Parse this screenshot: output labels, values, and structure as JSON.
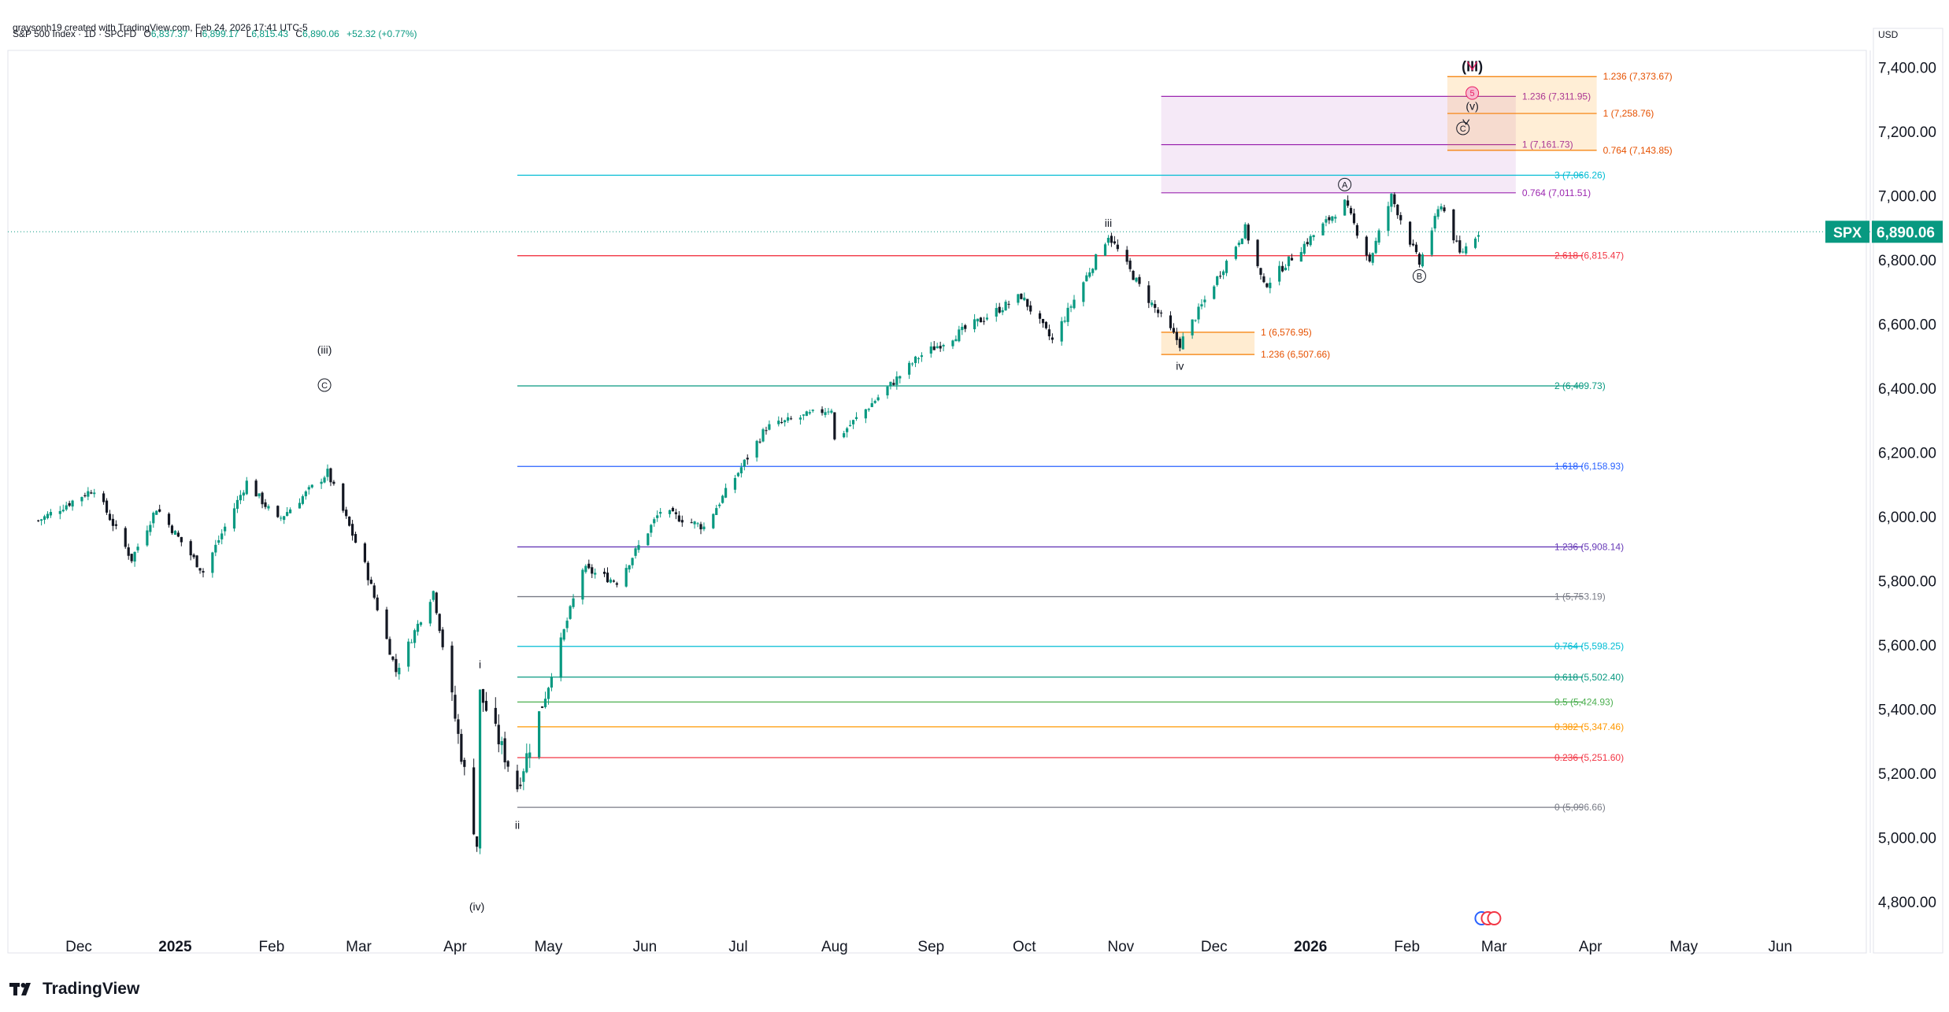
{
  "header": {
    "attribution": "graysonh19 created with TradingView.com, Feb 24, 2026 17:41 UTC-5"
  },
  "legend": {
    "symbol": "S&P 500 Index · 1D · SPCFD",
    "open_label": "O",
    "open": "6,837.37",
    "high_label": "H",
    "high": "6,899.17",
    "low_label": "L",
    "low": "6,815.43",
    "close_label": "C",
    "close": "6,890.06",
    "change": "+52.32 (+0.77%)"
  },
  "currency": "USD",
  "price_tag": {
    "symbol": "SPX",
    "value": "6,890.06"
  },
  "brand": "TradingView",
  "colors": {
    "up": "#089981",
    "down": "#131722",
    "price_tag": "#089981"
  },
  "chart_data": {
    "type": "candlestick",
    "title": "S&P 500 Index · 1D · SPCFD",
    "ylim": [
      4720,
      7460
    ],
    "y_ticks": [
      {
        "v": 4800,
        "label": "4,800.00"
      },
      {
        "v": 5000,
        "label": "5,000.00"
      },
      {
        "v": 5200,
        "label": "5,200.00"
      },
      {
        "v": 5400,
        "label": "5,400.00"
      },
      {
        "v": 5600,
        "label": "5,600.00"
      },
      {
        "v": 5800,
        "label": "5,800.00"
      },
      {
        "v": 6000,
        "label": "6,000.00"
      },
      {
        "v": 6200,
        "label": "6,200.00"
      },
      {
        "v": 6400,
        "label": "6,400.00"
      },
      {
        "v": 6600,
        "label": "6,600.00"
      },
      {
        "v": 6800,
        "label": "6,800.00"
      },
      {
        "v": 7000,
        "label": "7,000.00"
      },
      {
        "v": 7200,
        "label": "7,200.00"
      },
      {
        "v": 7400,
        "label": "7,400.00"
      }
    ],
    "x_ticks": [
      {
        "x": "2024-12-01",
        "label": "Dec",
        "bold": false
      },
      {
        "x": "2025-01-01",
        "label": "2025",
        "bold": true
      },
      {
        "x": "2025-02-01",
        "label": "Feb",
        "bold": false
      },
      {
        "x": "2025-03-01",
        "label": "Mar",
        "bold": false
      },
      {
        "x": "2025-04-01",
        "label": "Apr",
        "bold": false
      },
      {
        "x": "2025-05-01",
        "label": "May",
        "bold": false
      },
      {
        "x": "2025-06-01",
        "label": "Jun",
        "bold": false
      },
      {
        "x": "2025-07-01",
        "label": "Jul",
        "bold": false
      },
      {
        "x": "2025-08-01",
        "label": "Aug",
        "bold": false
      },
      {
        "x": "2025-09-01",
        "label": "Sep",
        "bold": false
      },
      {
        "x": "2025-10-01",
        "label": "Oct",
        "bold": false
      },
      {
        "x": "2025-11-01",
        "label": "Nov",
        "bold": false
      },
      {
        "x": "2025-12-01",
        "label": "Dec",
        "bold": false
      },
      {
        "x": "2026-01-01",
        "label": "2026",
        "bold": true
      },
      {
        "x": "2026-02-01",
        "label": "Feb",
        "bold": false
      },
      {
        "x": "2026-03-01",
        "label": "Mar",
        "bold": false
      },
      {
        "x": "2026-04-01",
        "label": "Apr",
        "bold": false
      },
      {
        "x": "2026-05-01",
        "label": "May",
        "bold": false
      },
      {
        "x": "2026-06-01",
        "label": "Jun",
        "bold": false
      }
    ],
    "last_close": 6890.06,
    "price_path": [
      [
        "2024-11-18",
        5990
      ],
      [
        "2024-12-06",
        6090
      ],
      [
        "2024-12-18",
        5870
      ],
      [
        "2024-12-26",
        6030
      ],
      [
        "2025-01-10",
        5830
      ],
      [
        "2025-01-24",
        6110
      ],
      [
        "2025-02-03",
        5990
      ],
      [
        "2025-02-19",
        6140
      ],
      [
        "2025-03-03",
        5850
      ],
      [
        "2025-03-13",
        5520
      ],
      [
        "2025-03-25",
        5770
      ],
      [
        "2025-04-08",
        4980
      ],
      [
        "2025-04-09",
        5450
      ],
      [
        "2025-04-21",
        5160
      ],
      [
        "2025-05-12",
        5840
      ],
      [
        "2025-05-23",
        5800
      ],
      [
        "2025-06-06",
        6020
      ],
      [
        "2025-06-20",
        5970
      ],
      [
        "2025-07-10",
        6280
      ],
      [
        "2025-07-31",
        6340
      ],
      [
        "2025-08-01",
        6240
      ],
      [
        "2025-08-28",
        6500
      ],
      [
        "2025-09-30",
        6690
      ],
      [
        "2025-10-10",
        6550
      ],
      [
        "2025-10-28",
        6880
      ],
      [
        "2025-11-07",
        6720
      ],
      [
        "2025-11-20",
        6540
      ],
      [
        "2025-12-11",
        6900
      ],
      [
        "2025-12-17",
        6720
      ],
      [
        "2026-01-12",
        6980
      ],
      [
        "2026-01-20",
        6800
      ],
      [
        "2026-01-27",
        7000
      ],
      [
        "2026-02-05",
        6790
      ],
      [
        "2026-02-12",
        6980
      ],
      [
        "2026-02-18",
        6820
      ],
      [
        "2026-02-24",
        6890.06
      ]
    ],
    "fib_levels": [
      {
        "v": 5096.66,
        "label": "0 (5,096.66)",
        "color": "#787b86",
        "from": "2025-04-21"
      },
      {
        "v": 5251.6,
        "label": "0.236 (5,251.60)",
        "color": "#f23645",
        "from": "2025-04-21"
      },
      {
        "v": 5347.46,
        "label": "0.382 (5,347.46)",
        "color": "#ff9800",
        "from": "2025-04-21"
      },
      {
        "v": 5424.93,
        "label": "0.5 (5,424.93)",
        "color": "#4caf50",
        "from": "2025-04-21"
      },
      {
        "v": 5502.4,
        "label": "0.618 (5,502.40)",
        "color": "#089981",
        "from": "2025-04-21"
      },
      {
        "v": 5598.25,
        "label": "0.764 (5,598.25)",
        "color": "#00bcd4",
        "from": "2025-04-21"
      },
      {
        "v": 5753.19,
        "label": "1 (5,753.19)",
        "color": "#787b86",
        "from": "2025-04-21"
      },
      {
        "v": 5908.14,
        "label": "1.236 (5,908.14)",
        "color": "#673ab7",
        "from": "2025-04-21"
      },
      {
        "v": 6158.93,
        "label": "1.618 (6,158.93)",
        "color": "#2962ff",
        "from": "2025-04-21"
      },
      {
        "v": 6409.73,
        "label": "2 (6,409.73)",
        "color": "#089981",
        "from": "2025-04-21"
      },
      {
        "v": 6815.47,
        "label": "2.618 (6,815.47)",
        "color": "#f23645",
        "from": "2025-04-21"
      },
      {
        "v": 7066.26,
        "label": "3 (7,066.26)",
        "color": "#00bcd4",
        "from": "2025-04-21"
      }
    ],
    "iv_box": {
      "from": "2025-11-14",
      "to": "2025-12-14",
      "top": 6576.95,
      "bottom": 6507.66,
      "labels": [
        "1 (6,576.95)",
        "1.236 (6,507.66)"
      ],
      "color": "#f57c00"
    },
    "purple_box": {
      "from": "2025-11-14",
      "to": "2026-03-08",
      "top": 7311.95,
      "bottom": 7011.51,
      "labels": [
        "1.236 (7,311.95)",
        "1 (7,161.73)",
        "0.764 (7,011.51)"
      ],
      "values": [
        7311.95,
        7161.73,
        7011.51
      ],
      "color": "#9c27b0"
    },
    "orange_box": {
      "from": "2026-02-14",
      "to": "2026-04-03",
      "top": 7373.67,
      "bottom": 7143.85,
      "labels": [
        "1.236 (7,373.67)",
        "1 (7,258.76)",
        "0.764 (7,143.85)"
      ],
      "values": [
        7373.67,
        7258.76,
        7143.85
      ],
      "color": "#f57c00"
    },
    "wave_labels": [
      {
        "text": "(iii)",
        "x": "2025-02-18",
        "y": 6510,
        "circled": false
      },
      {
        "text": "C",
        "x": "2025-02-18",
        "y": 6400,
        "circled": true
      },
      {
        "text": "(iv)",
        "x": "2025-04-08",
        "y": 4775,
        "circled": false
      },
      {
        "text": "i",
        "x": "2025-04-09",
        "y": 5530,
        "circled": false
      },
      {
        "text": "ii",
        "x": "2025-04-21",
        "y": 5030,
        "circled": false
      },
      {
        "text": "iii",
        "x": "2025-10-28",
        "y": 6905,
        "circled": false
      },
      {
        "text": "iv",
        "x": "2025-11-20",
        "y": 6460,
        "circled": false
      },
      {
        "text": "A",
        "x": "2026-01-12",
        "y": 7025,
        "circled": true
      },
      {
        "text": "B",
        "x": "2026-02-05",
        "y": 6740,
        "circled": true
      },
      {
        "text": "C",
        "x": "2026-02-19",
        "y": 7200,
        "circled": true
      },
      {
        "text": "(v)",
        "x": "2026-02-22",
        "y": 7270,
        "circled": false
      },
      {
        "text": "5",
        "x": "2026-02-22",
        "y": 7310,
        "circled": true
      },
      {
        "text": "(III)",
        "x": "2026-02-22",
        "y": 7390,
        "circled": false
      }
    ]
  }
}
